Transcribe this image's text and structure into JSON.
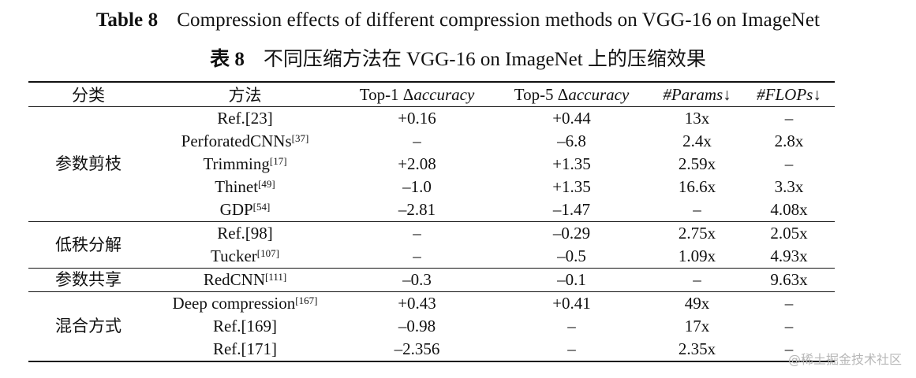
{
  "caption_en": {
    "label": "Table 8",
    "text": "Compression effects of different compression methods on VGG-16 on ImageNet"
  },
  "caption_zh": {
    "label": "表 8",
    "text": "不同压缩方法在 VGG-16 on ImageNet 上的压缩效果"
  },
  "headers": [
    "分类",
    "方法",
    "Top-1 Δaccuracy",
    "Top-5 Δaccuracy",
    "#Params↓",
    "#FLOPs↓"
  ],
  "groups": [
    {
      "category": "参数剪枝",
      "rows": [
        {
          "method": "Ref.[23]",
          "sup": "",
          "top1": "+0.16",
          "top5": "+0.44",
          "params": "13x",
          "flops": "–"
        },
        {
          "method": "PerforatedCNNs",
          "sup": "[37]",
          "top1": "–",
          "top5": "–6.8",
          "params": "2.4x",
          "flops": "2.8x"
        },
        {
          "method": "Trimming",
          "sup": "[17]",
          "top1": "+2.08",
          "top5": "+1.35",
          "params": "2.59x",
          "flops": "–"
        },
        {
          "method": "Thinet",
          "sup": "[49]",
          "top1": "–1.0",
          "top5": "+1.35",
          "params": "16.6x",
          "flops": "3.3x"
        },
        {
          "method": "GDP",
          "sup": "[54]",
          "top1": "–2.81",
          "top5": "–1.47",
          "params": "–",
          "flops": "4.08x"
        }
      ]
    },
    {
      "category": "低秩分解",
      "rows": [
        {
          "method": "Ref.[98]",
          "sup": "",
          "top1": "–",
          "top5": "–0.29",
          "params": "2.75x",
          "flops": "2.05x"
        },
        {
          "method": "Tucker",
          "sup": "[107]",
          "top1": "–",
          "top5": "–0.5",
          "params": "1.09x",
          "flops": "4.93x"
        }
      ]
    },
    {
      "category": "参数共享",
      "rows": [
        {
          "method": "RedCNN",
          "sup": "[111]",
          "top1": "–0.3",
          "top5": "–0.1",
          "params": "–",
          "flops": "9.63x"
        }
      ]
    },
    {
      "category": "混合方式",
      "rows": [
        {
          "method": "Deep compression",
          "sup": "[167]",
          "top1": "+0.43",
          "top5": "+0.41",
          "params": "49x",
          "flops": "–"
        },
        {
          "method": "Ref.[169]",
          "sup": "",
          "top1": "–0.98",
          "top5": "–",
          "params": "17x",
          "flops": "–"
        },
        {
          "method": "Ref.[171]",
          "sup": "",
          "top1": "–2.356",
          "top5": "–",
          "params": "2.35x",
          "flops": "–"
        }
      ]
    }
  ],
  "watermark": "@稀土掘金技术社区"
}
